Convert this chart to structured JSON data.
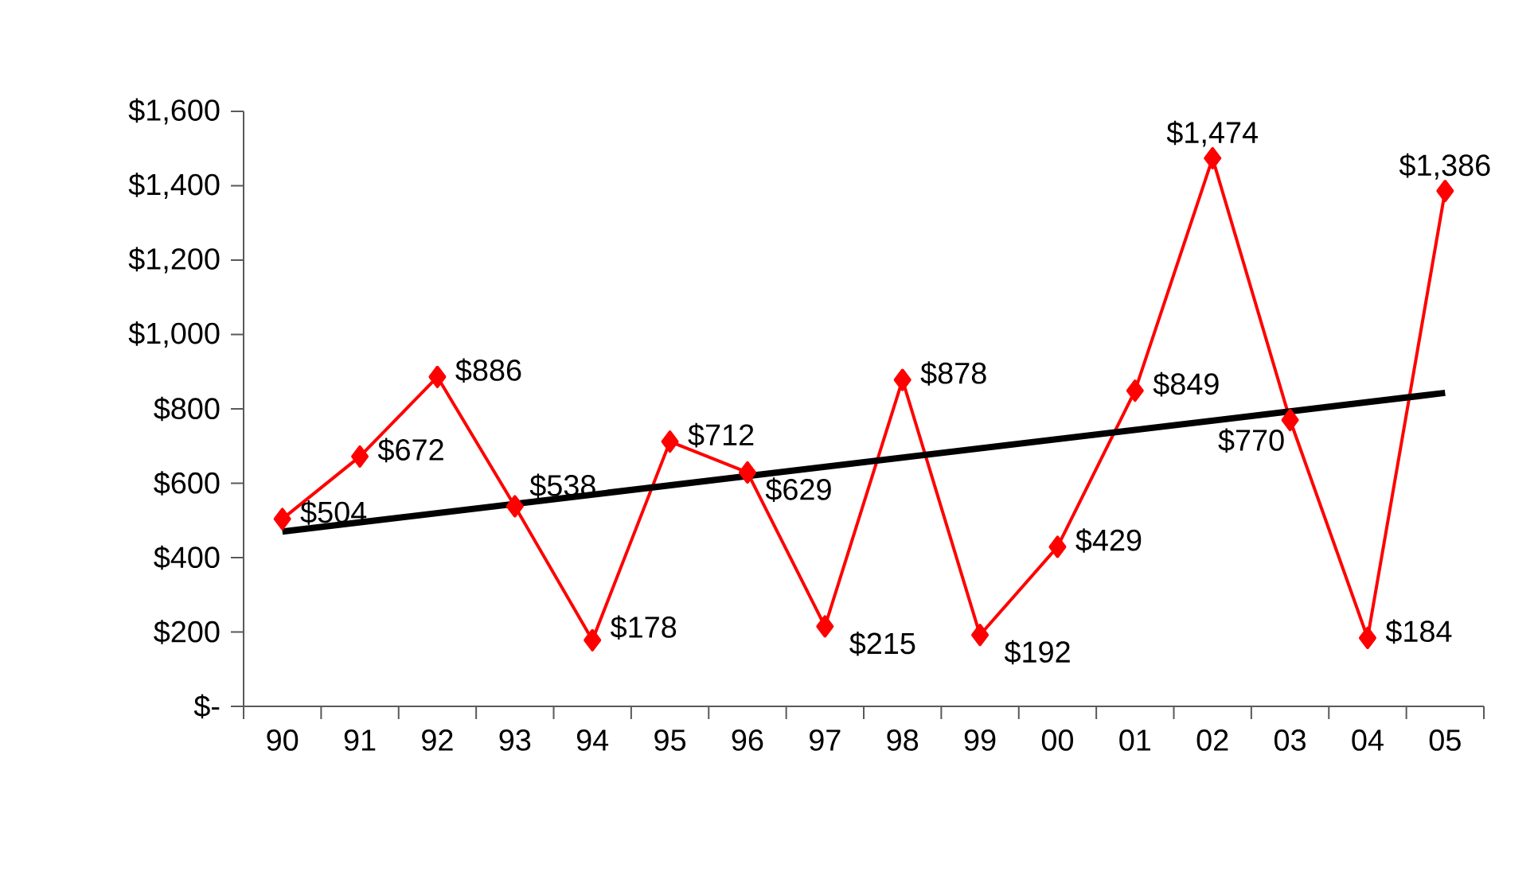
{
  "chart_data": {
    "type": "line",
    "categories": [
      "90",
      "91",
      "92",
      "93",
      "94",
      "95",
      "96",
      "97",
      "98",
      "99",
      "00",
      "01",
      "02",
      "03",
      "04",
      "05"
    ],
    "series": [
      {
        "color": "#ff0000",
        "marker": "diamond",
        "values": [
          504,
          672,
          886,
          538,
          178,
          712,
          629,
          215,
          878,
          192,
          429,
          849,
          1474,
          770,
          184,
          1386
        ],
        "value_labels": [
          "$504",
          "$672",
          "$886",
          "$538",
          "$178",
          "$712",
          "$629",
          "$215",
          "$878",
          "$192",
          "$429",
          "$849",
          "$1,474",
          "$770",
          "$184",
          "$1,386"
        ]
      },
      {
        "type": "line",
        "color": "#000000",
        "marker": "none",
        "x": [
          "90",
          "05"
        ],
        "values": [
          470,
          843
        ]
      }
    ],
    "ylim": [
      0,
      1600
    ],
    "yticks": [
      {
        "value": 0,
        "label": "$-"
      },
      {
        "value": 200,
        "label": "$200"
      },
      {
        "value": 400,
        "label": "$400"
      },
      {
        "value": 600,
        "label": "$600"
      },
      {
        "value": 800,
        "label": "$800"
      },
      {
        "value": 1000,
        "label": "$1,000"
      },
      {
        "value": 1200,
        "label": "$1,200"
      },
      {
        "value": 1400,
        "label": "$1,400"
      },
      {
        "value": 1600,
        "label": "$1,600"
      }
    ],
    "grid": false
  }
}
